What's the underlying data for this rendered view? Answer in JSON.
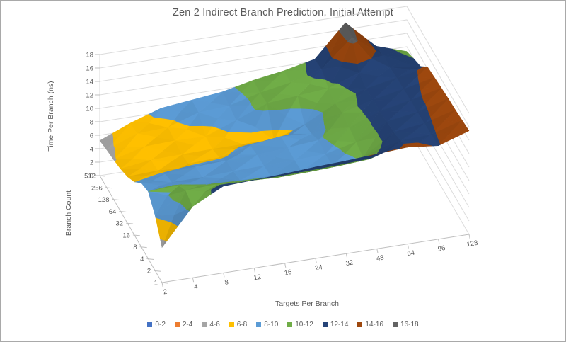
{
  "frame": {
    "background": "#ffffff",
    "border_color": "#a9a9a9"
  },
  "chart_data": {
    "type": "surface",
    "title": "Zen 2 Indirect Branch Prediction, Initial Attempt",
    "x_axis": {
      "title": "Targets Per Branch",
      "categories": [
        "2",
        "4",
        "8",
        "12",
        "16",
        "24",
        "32",
        "48",
        "64",
        "96",
        "128"
      ]
    },
    "depth_axis": {
      "title": "Branch Count",
      "categories": [
        "1",
        "2",
        "4",
        "8",
        "16",
        "32",
        "64",
        "128",
        "256",
        "512"
      ]
    },
    "value_axis": {
      "title": "Time Per Branch (ns)",
      "min": 0,
      "max": 18,
      "major_unit": 2,
      "tick_labels": [
        "0",
        "2",
        "4",
        "6",
        "8",
        "10",
        "12",
        "14",
        "16",
        "18"
      ]
    },
    "legend": [
      {
        "label": "0-2",
        "color": "#4472C4"
      },
      {
        "label": "2-4",
        "color": "#ED7D31"
      },
      {
        "label": "4-6",
        "color": "#A5A5A5"
      },
      {
        "label": "6-8",
        "color": "#FFC000"
      },
      {
        "label": "8-10",
        "color": "#5B9BD5"
      },
      {
        "label": "10-12",
        "color": "#70AD47"
      },
      {
        "label": "12-14",
        "color": "#264478"
      },
      {
        "label": "14-16",
        "color": "#9E480E"
      },
      {
        "label": "16-18",
        "color": "#636363"
      }
    ],
    "values_rows_front_to_back": [
      [
        5.2,
        10.6,
        12.9,
        13.1,
        13.3,
        13.6,
        13.8,
        14.1,
        14.4,
        13.9,
        15.4
      ],
      [
        8.2,
        11.2,
        11.4,
        11.2,
        11.0,
        11.1,
        11.3,
        11.6,
        13.6,
        13.8,
        15.2
      ],
      [
        10.0,
        10.2,
        9.7,
        9.5,
        9.4,
        9.5,
        9.6,
        10.1,
        13.1,
        13.7,
        15.0
      ],
      [
        9.5,
        8.9,
        8.9,
        9.1,
        9.2,
        9.3,
        9.5,
        10.6,
        12.9,
        13.6,
        14.9
      ],
      [
        7.9,
        8.4,
        8.7,
        8.9,
        9.1,
        9.4,
        9.8,
        11.0,
        12.7,
        13.6,
        14.7
      ],
      [
        6.9,
        7.1,
        7.4,
        7.6,
        8.7,
        9.3,
        9.0,
        11.4,
        12.6,
        13.5,
        14.5
      ],
      [
        6.3,
        6.9,
        7.0,
        7.1,
        7.1,
        7.0,
        8.6,
        11.0,
        12.5,
        13.4,
        14.3
      ],
      [
        5.9,
        7.1,
        7.3,
        7.2,
        8.9,
        10.7,
        11.1,
        11.5,
        13.1,
        13.2,
        12.6
      ],
      [
        5.6,
        7.3,
        7.5,
        9.0,
        9.3,
        10.5,
        11.3,
        12.6,
        16.6,
        13.2,
        12.0
      ],
      [
        5.2,
        7.1,
        8.6,
        9.1,
        9.6,
        10.6,
        11.3,
        12.3,
        17.0,
        12.8,
        11.3
      ]
    ],
    "text_color": "#595959",
    "gridline_color": "#DCDCDC",
    "axis_line_color": "#BFBFBF"
  }
}
